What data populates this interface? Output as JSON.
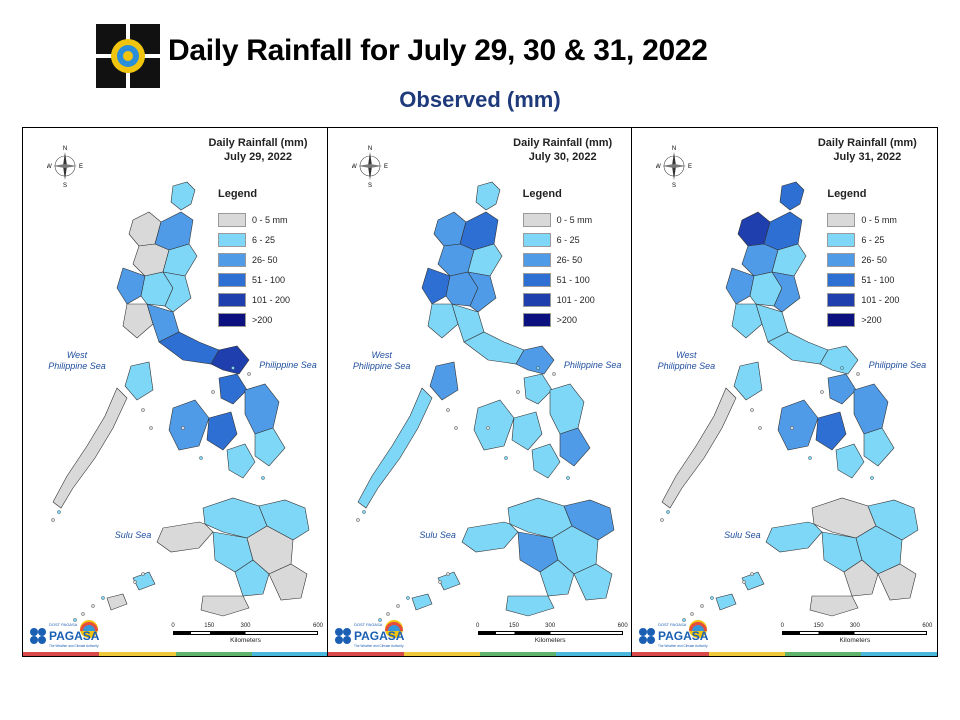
{
  "header": {
    "title": "Daily Rainfall for July 29, 30 & 31, 2022",
    "subtitle": "Observed (mm)"
  },
  "legend": {
    "title": "Legend",
    "classes": [
      {
        "label": "0 - 5 mm",
        "color": "#d9d9d9"
      },
      {
        "label": "6 - 25",
        "color": "#7fd7f7"
      },
      {
        "label": "26- 50",
        "color": "#4f9be8"
      },
      {
        "label": "51 - 100",
        "color": "#2e6fd4"
      },
      {
        "label": "101 - 200",
        "color": "#1f3fae"
      },
      {
        "label": ">200",
        "color": "#0b1280"
      }
    ]
  },
  "maps": [
    {
      "title_line1": "Daily Rainfall (mm)",
      "title_line2": "July 29, 2022",
      "region_levels": [
        1,
        0,
        2,
        0,
        1,
        2,
        1,
        1,
        0,
        2,
        3,
        4,
        1,
        2,
        3,
        3,
        2,
        1,
        1,
        0,
        1,
        1,
        1,
        0,
        0,
        1,
        0,
        0,
        1,
        0
      ]
    },
    {
      "title_line1": "Daily Rainfall (mm)",
      "title_line2": "July 30, 2022",
      "region_levels": [
        1,
        2,
        3,
        2,
        1,
        3,
        2,
        2,
        1,
        1,
        1,
        2,
        2,
        1,
        1,
        1,
        1,
        2,
        1,
        1,
        1,
        2,
        2,
        1,
        1,
        1,
        1,
        1,
        1,
        1
      ]
    },
    {
      "title_line1": "Daily Rainfall (mm)",
      "title_line2": "July 31, 2022",
      "region_levels": [
        3,
        4,
        3,
        2,
        1,
        2,
        1,
        2,
        1,
        1,
        1,
        1,
        1,
        2,
        3,
        2,
        2,
        1,
        1,
        0,
        0,
        1,
        1,
        1,
        0,
        0,
        1,
        0,
        1,
        1
      ]
    }
  ],
  "labels": {
    "west_sea_line1": "West",
    "west_sea_line2": "Philippine Sea",
    "east_sea": "Philippine Sea",
    "sulu_sea": "Sulu Sea",
    "compass_n": "N",
    "compass_s": "S",
    "compass_e": "E",
    "compass_w": "W",
    "scale_ticks": [
      "0",
      "150",
      "300",
      "600"
    ],
    "scale_unit": "Kilometers",
    "pagasa_top": "DOST PAGASA",
    "pagasa_brand": "PAGASA",
    "pagasa_tagline": "The Weather and Climate Authority"
  },
  "strip_colors": [
    "#d84a4a",
    "#f0c93a",
    "#5fb36a",
    "#49b8dc"
  ]
}
